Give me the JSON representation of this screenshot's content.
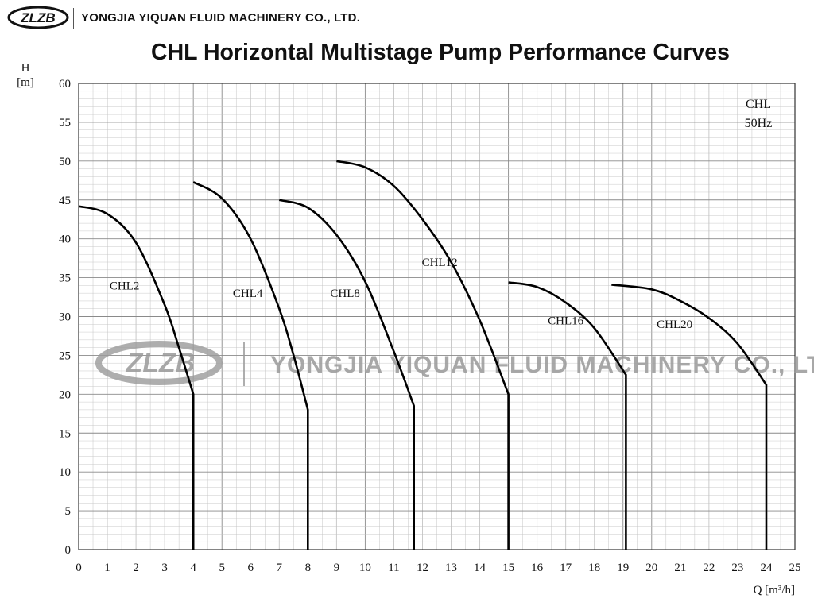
{
  "header": {
    "logo_text": "ZLZB",
    "company": "YONGJIA YIQUAN FLUID MACHINERY CO., LTD."
  },
  "watermark": {
    "logo_text": "ZLZB",
    "text": "YONGJIA YIQUAN FLUID MACHINERY CO., LTD."
  },
  "colors": {
    "curve": "#000000",
    "grid_minor": "#c4c4c4",
    "grid_major": "#8a8a8a",
    "watermark": "#9a9a9a"
  },
  "chart_data": {
    "type": "line",
    "title": "CHL Horizontal Multistage Pump Performance Curves",
    "ylabel_top": "H",
    "ylabel_unit": "[m]",
    "xlabel": "Q [m³/h]",
    "note_lines": [
      "CHL",
      "50Hz"
    ],
    "xlim": [
      0,
      25
    ],
    "ylim": [
      0,
      60
    ],
    "xticks": [
      0,
      1,
      2,
      3,
      4,
      5,
      6,
      7,
      8,
      9,
      10,
      11,
      12,
      13,
      14,
      15,
      16,
      17,
      18,
      19,
      20,
      21,
      22,
      23,
      24,
      25
    ],
    "yticks": [
      0,
      5,
      10,
      15,
      20,
      25,
      30,
      35,
      40,
      45,
      50,
      55,
      60
    ],
    "grid": true,
    "series": [
      {
        "name": "CHL2",
        "label_at": [
          1.6,
          33.5
        ],
        "x": [
          0,
          1,
          2,
          3,
          3.5,
          4,
          4
        ],
        "y": [
          44.2,
          43.2,
          39.5,
          31.5,
          26,
          20,
          0
        ]
      },
      {
        "name": "CHL4",
        "label_at": [
          5.9,
          32.5
        ],
        "x": [
          4,
          5,
          6,
          7,
          7.5,
          8,
          8
        ],
        "y": [
          47.3,
          45.2,
          40,
          31,
          25,
          18,
          0
        ]
      },
      {
        "name": "CHL8",
        "label_at": [
          9.3,
          32.5
        ],
        "x": [
          7,
          8,
          9,
          10,
          11,
          11.7,
          11.7
        ],
        "y": [
          45,
          44,
          40.5,
          34.5,
          25.5,
          18.5,
          0
        ]
      },
      {
        "name": "CHL12",
        "label_at": [
          12.6,
          36.5
        ],
        "x": [
          9,
          10,
          11,
          12,
          13,
          14,
          15,
          15
        ],
        "y": [
          50,
          49.2,
          46.8,
          42.5,
          37,
          29.5,
          20,
          0
        ]
      },
      {
        "name": "CHL16",
        "label_at": [
          17.0,
          29.0
        ],
        "x": [
          15,
          16,
          17,
          18,
          19.1,
          19.1
        ],
        "y": [
          34.4,
          33.8,
          31.8,
          28.5,
          22.5,
          0
        ]
      },
      {
        "name": "CHL20",
        "label_at": [
          20.8,
          28.5
        ],
        "x": [
          18.6,
          20,
          21,
          22,
          23,
          24,
          24
        ],
        "y": [
          34.1,
          33.5,
          32,
          29.8,
          26.5,
          21.2,
          0
        ]
      }
    ]
  }
}
